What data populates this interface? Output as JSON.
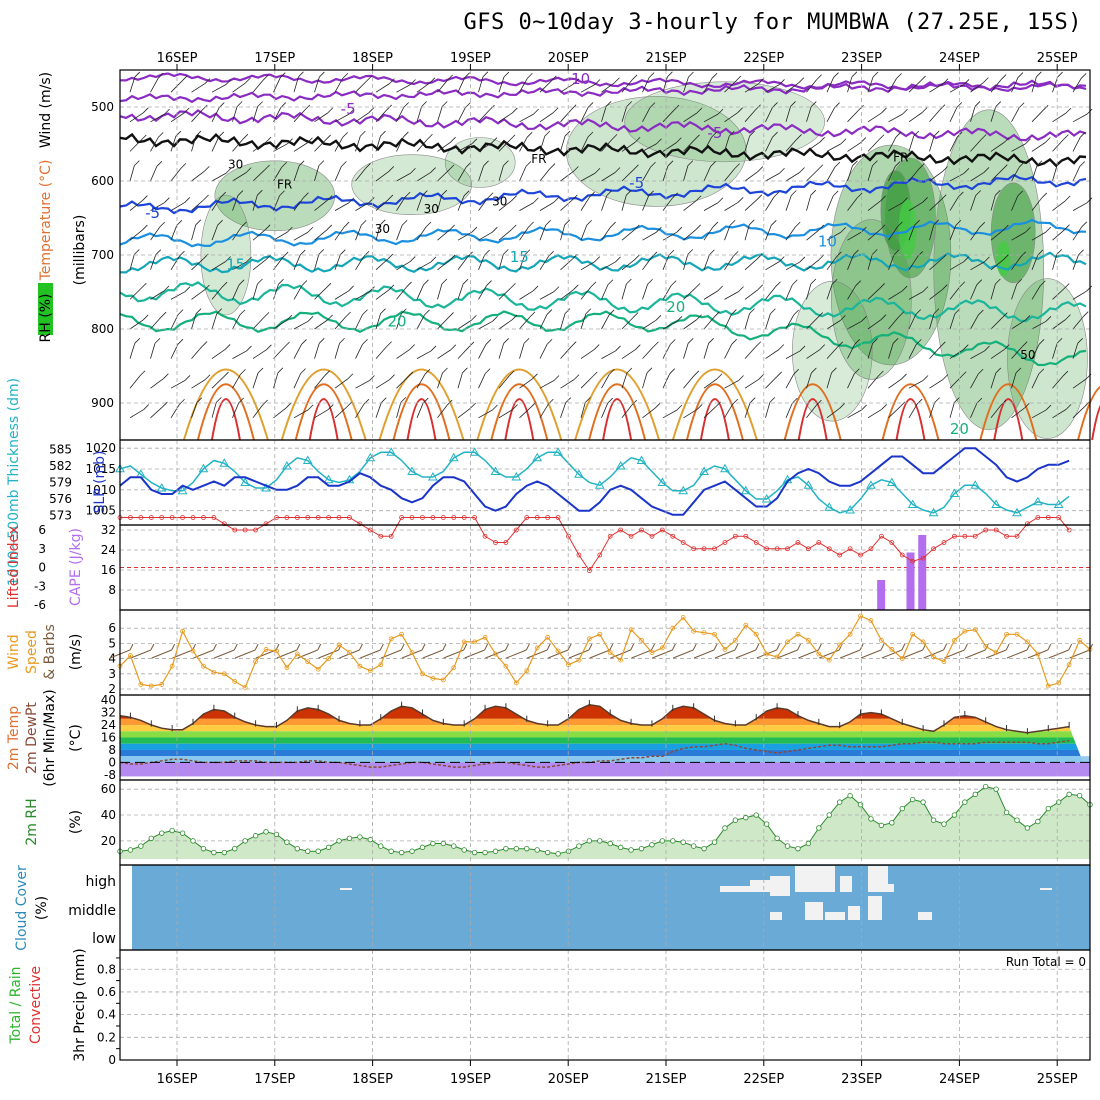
{
  "title": "GFS 0~10day 3-hourly for MUMBWA (27.25E, 15S)",
  "dates": [
    "16SEP",
    "17SEP",
    "18SEP",
    "19SEP",
    "20SEP",
    "21SEP",
    "22SEP",
    "23SEP",
    "24SEP",
    "25SEP"
  ],
  "colors": {
    "frame": "#000000",
    "grid": "#aaaaaa",
    "temperature": "#7b1fa2",
    "slp": "#1a35c8",
    "thickness": "#22b3c4",
    "lifted_index": "#e03030",
    "cape": "#b36ef0",
    "wind_speed": "#e89a1e",
    "barbs": "#7a5a3a",
    "rh2m": "#2a8a2a",
    "cloud_bg": "#6aaad6",
    "cloud": "#f2f2f2"
  },
  "chart_data": [
    {
      "panel": "upper-air",
      "type": "contour",
      "ylabel_parts": [
        "RH (%)",
        "Temperature (°C)",
        "Wind (m/s)"
      ],
      "ylabel_units": "(millibars)",
      "yticks": [
        500,
        600,
        700,
        800,
        900
      ],
      "ylim": [
        450,
        950
      ],
      "isotherm_labels": [
        {
          "value": "-10",
          "day": 4.1,
          "p": 462
        },
        {
          "value": "-5",
          "day": 1.75,
          "p": 503
        },
        {
          "value": "-5",
          "day": 5.5,
          "p": 535
        },
        {
          "value": "-5",
          "day": 4.7,
          "p": 603
        },
        {
          "value": "-5",
          "day": -0.25,
          "p": 643
        },
        {
          "value": "10",
          "day": 6.65,
          "p": 682
        },
        {
          "value": "15",
          "day": 0.6,
          "p": 713
        },
        {
          "value": "15",
          "day": 3.5,
          "p": 703
        },
        {
          "value": "20",
          "day": 5.1,
          "p": 770
        },
        {
          "value": "20",
          "day": 2.25,
          "p": 790
        },
        {
          "value": "20",
          "day": 8.0,
          "p": 935
        }
      ],
      "fr_labels": [
        {
          "value": "FR",
          "day": 1.1,
          "p": 605
        },
        {
          "value": "FR",
          "day": 3.7,
          "p": 570
        },
        {
          "value": "FR",
          "day": 7.4,
          "p": 568
        }
      ],
      "rh_labels": [
        {
          "value": "30",
          "day": 0.6,
          "p": 578
        },
        {
          "value": "30",
          "day": 2.6,
          "p": 638
        },
        {
          "value": "30",
          "day": 2.1,
          "p": 665
        },
        {
          "value": "30",
          "day": 3.3,
          "p": 628
        },
        {
          "value": "50",
          "day": 8.7,
          "p": 835
        }
      ]
    },
    {
      "panel": "slp-thickness",
      "type": "line",
      "ylabel_left": "1000~500mb Thickness (dm)",
      "ylabel_right": "SLP (mb)",
      "yticks_thickness": [
        573,
        576,
        579,
        582,
        585
      ],
      "yticks_slp": [
        1005,
        1010,
        1015,
        1020
      ],
      "series": [
        {
          "name": "SLP",
          "values": [
            1011,
            1013,
            1013,
            1010,
            1009,
            1009,
            1011,
            1010,
            1011,
            1012,
            1011,
            1013,
            1013,
            1012,
            1011,
            1010,
            1010,
            1011,
            1013,
            1013,
            1011,
            1011,
            1012,
            1014,
            1013,
            1011,
            1010,
            1008,
            1007,
            1008,
            1011,
            1013,
            1013,
            1012,
            1009,
            1006,
            1005,
            1006,
            1009,
            1011,
            1012,
            1011,
            1009,
            1007,
            1005,
            1005,
            1007,
            1010,
            1011,
            1010,
            1008,
            1006,
            1005,
            1004,
            1004,
            1007,
            1010,
            1011,
            1012,
            1010,
            1008,
            1006,
            1006,
            1008,
            1012,
            1014,
            1015,
            1014,
            1012,
            1011,
            1011,
            1012,
            1014,
            1016,
            1018,
            1018,
            1016,
            1014,
            1014,
            1016,
            1018,
            1020,
            1020,
            1018,
            1016,
            1013,
            1012,
            1013,
            1015,
            1016,
            1016,
            1017
          ]
        },
        {
          "name": "Thickness",
          "values": [
            581.5,
            582.0,
            580.5,
            579.0,
            578.0,
            577.5,
            577.5,
            579.0,
            581.5,
            583.0,
            582.5,
            581.0,
            579.0,
            578.0,
            578.0,
            579.5,
            582.0,
            583.5,
            583.0,
            581.0,
            579.5,
            579.0,
            579.5,
            581.0,
            583.5,
            584.5,
            584.5,
            583.0,
            581.0,
            580.0,
            580.0,
            581.0,
            583.5,
            584.5,
            584.5,
            583.0,
            581.0,
            580.0,
            580.0,
            581.5,
            583.5,
            584.5,
            584.5,
            582.5,
            580.5,
            579.0,
            578.5,
            580.0,
            582.0,
            583.5,
            583.0,
            581.0,
            579.0,
            577.5,
            577.5,
            578.5,
            581.0,
            582.0,
            581.5,
            579.5,
            577.5,
            576.0,
            576.0,
            577.5,
            579.5,
            580.0,
            578.5,
            576.0,
            574.5,
            573.5,
            574.0,
            576.0,
            578.5,
            579.5,
            579.0,
            577.0,
            575.0,
            574.0,
            573.5,
            574.5,
            577.0,
            578.5,
            578.5,
            577.0,
            575.0,
            574.0,
            573.5,
            574.5,
            575.5,
            575.0,
            575.0,
            576.5
          ]
        }
      ]
    },
    {
      "panel": "cape-li",
      "type": "bar-line",
      "ylabel_left": "Lifted Index",
      "ylabel_right": "CAPE (J/kg)",
      "yticks_li": [
        "6",
        "3",
        "0",
        "-3",
        "-6"
      ],
      "yticks_cape": [
        8,
        16,
        24,
        32
      ],
      "cape_bars": [
        {
          "day": 7.2,
          "value": 12
        },
        {
          "day": 7.5,
          "value": 23
        },
        {
          "day": 7.62,
          "value": 30
        }
      ],
      "lifted_index": [
        8,
        8,
        8,
        8,
        8,
        8,
        8,
        8,
        8,
        8,
        7,
        6,
        6,
        6,
        7,
        8,
        8,
        8,
        8,
        8,
        8,
        8,
        8,
        7,
        6,
        5,
        5,
        8,
        8,
        8,
        8,
        8,
        8,
        8,
        8,
        5,
        4,
        4,
        6,
        8,
        8,
        8,
        8,
        5,
        2,
        -0.5,
        2,
        5,
        6,
        5,
        6,
        5,
        6,
        5,
        4,
        3,
        3,
        3,
        4,
        5,
        5,
        4,
        3,
        3,
        3,
        4,
        3,
        4,
        3,
        2,
        3,
        2,
        3,
        5,
        4,
        2,
        1,
        1.5,
        3,
        4,
        5,
        5,
        5,
        6,
        6,
        5,
        5,
        7,
        8,
        8,
        8,
        6
      ]
    },
    {
      "panel": "wind10m",
      "type": "line",
      "ylabel": "10m Wind Speed (m/s) & Barbs",
      "yticks": [
        2,
        3,
        4,
        5,
        6
      ],
      "series": [
        {
          "name": "Speed",
          "values": [
            3.5,
            4.2,
            2.3,
            2.2,
            2.3,
            3.5,
            5.8,
            4.5,
            3.5,
            3.1,
            3.0,
            2.5,
            2.1,
            3.8,
            4.6,
            4.5,
            3.4,
            4.3,
            3.8,
            3.3,
            4.0,
            4.9,
            4.4,
            3.5,
            3.2,
            3.6,
            5.3,
            5.6,
            4.4,
            3.0,
            2.7,
            2.6,
            3.4,
            5.1,
            5.1,
            5.4,
            4.3,
            3.5,
            2.4,
            3.2,
            4.7,
            5.4,
            4.5,
            3.6,
            3.9,
            5.3,
            5.6,
            4.4,
            3.9,
            5.9,
            5.2,
            4.4,
            4.7,
            6.0,
            6.7,
            5.8,
            5.7,
            5.6,
            4.6,
            5.2,
            6.2,
            5.6,
            4.3,
            4.1,
            5.1,
            5.6,
            5.2,
            4.3,
            3.9,
            4.9,
            5.6,
            6.8,
            6.5,
            5.2,
            4.6,
            4.0,
            5.6,
            5.1,
            4.1,
            3.8,
            5.2,
            5.8,
            5.9,
            4.8,
            4.4,
            5.6,
            5.6,
            5.1,
            4.3,
            2.2,
            2.4,
            3.6,
            5.2,
            4.6
          ]
        }
      ]
    },
    {
      "panel": "temp2m",
      "type": "area",
      "ylabel": "2m Temp 2m DewPt (6hr Min/Max) (°C)",
      "yticks": [
        -8,
        0,
        8,
        16,
        24,
        32,
        40
      ],
      "series": [
        {
          "name": "Temp",
          "values": [
            30,
            29,
            27,
            24,
            22,
            21,
            21,
            25,
            31,
            34,
            33,
            29,
            26,
            24,
            23,
            23,
            27,
            33,
            35,
            34,
            31,
            27,
            25,
            24,
            24,
            28,
            33,
            36,
            35,
            31,
            27,
            25,
            24,
            24,
            28,
            34,
            36,
            35,
            31,
            27,
            25,
            24,
            24,
            28,
            34,
            37,
            36,
            31,
            27,
            25,
            24,
            24,
            28,
            34,
            36,
            35,
            31,
            27,
            25,
            24,
            24,
            28,
            33,
            35,
            34,
            30,
            27,
            25,
            23,
            23,
            26,
            31,
            32,
            31,
            28,
            25,
            23,
            21,
            20,
            24,
            29,
            30,
            29,
            26,
            23,
            21,
            20,
            19,
            20,
            21,
            22,
            23
          ]
        },
        {
          "name": "DewPt",
          "values": [
            0,
            -1,
            -1,
            0,
            1,
            2,
            2,
            1,
            0,
            0,
            0,
            1,
            1,
            1,
            0,
            0,
            0,
            0,
            1,
            1,
            0,
            0,
            -1,
            -2,
            -3,
            -3,
            -2,
            -1,
            0,
            0,
            -1,
            -2,
            -3,
            -3,
            -2,
            -1,
            0,
            0,
            -1,
            -2,
            -3,
            -3,
            -2,
            -1,
            0,
            0,
            1,
            1,
            2,
            3,
            3,
            4,
            4,
            7,
            9,
            10,
            10,
            11,
            12,
            11,
            9,
            8,
            7,
            6,
            7,
            8,
            9,
            10,
            11,
            11,
            10,
            10,
            10,
            10,
            11,
            12,
            12,
            13,
            13,
            12,
            12,
            12,
            12,
            13,
            13,
            13,
            13,
            13,
            12,
            12,
            13,
            14
          ]
        }
      ]
    },
    {
      "panel": "rh2m",
      "type": "area",
      "ylabel": "2m RH (%)",
      "yticks": [
        20,
        40,
        60
      ],
      "series": [
        {
          "name": "RH",
          "values": [
            12,
            13,
            16,
            22,
            26,
            28,
            26,
            20,
            14,
            11,
            11,
            14,
            20,
            24,
            27,
            25,
            19,
            14,
            12,
            12,
            15,
            20,
            22,
            23,
            21,
            16,
            12,
            11,
            12,
            15,
            18,
            18,
            16,
            13,
            11,
            11,
            12,
            14,
            14,
            14,
            13,
            11,
            10,
            12,
            16,
            20,
            20,
            18,
            15,
            13,
            14,
            17,
            20,
            20,
            19,
            16,
            14,
            19,
            30,
            36,
            38,
            40,
            33,
            22,
            16,
            14,
            18,
            30,
            40,
            50,
            55,
            48,
            37,
            32,
            34,
            45,
            52,
            50,
            36,
            33,
            40,
            50,
            56,
            62,
            60,
            42,
            36,
            30,
            35,
            45,
            50,
            56,
            55,
            48
          ]
        }
      ]
    },
    {
      "panel": "cloud",
      "type": "heatmap",
      "ylabel": "Cloud Cover (%)",
      "levels": [
        "high",
        "middle",
        "low"
      ]
    },
    {
      "panel": "precip",
      "type": "bar",
      "ylabel_left": "Total / Rain Convective",
      "ylabel": "3hr Precip (mm)",
      "yticks": [
        "0",
        "0.2",
        "0.4",
        "0.6",
        "0.8"
      ],
      "run_total": "Run Total = 0",
      "values": []
    }
  ]
}
